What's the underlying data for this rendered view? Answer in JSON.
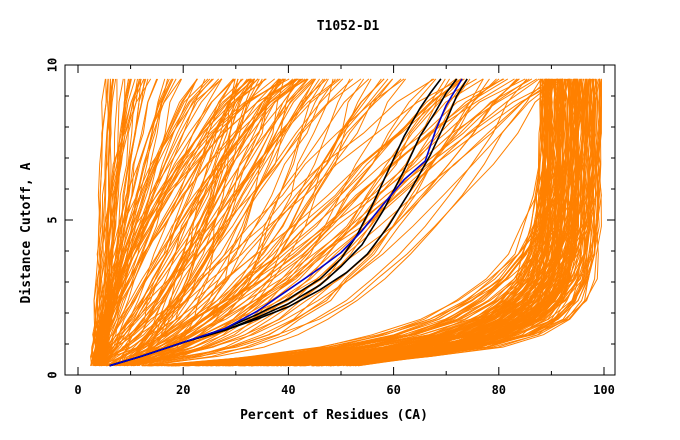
{
  "chart_data": {
    "type": "line",
    "title": "T1052-D1",
    "xlabel": "Percent of Residues (CA)",
    "ylabel": "Distance Cutoff, A",
    "xlim": [
      0,
      100
    ],
    "ylim": [
      0,
      10
    ],
    "x_ticks": [
      0,
      20,
      40,
      60,
      80,
      100
    ],
    "y_ticks": [
      0,
      5,
      10
    ],
    "x_tick_labels": [
      "0",
      "20",
      "40",
      "60",
      "80",
      "100"
    ],
    "y_tick_labels": [
      "0",
      "5",
      "10"
    ],
    "grid": false,
    "legend": "none",
    "colors": {
      "bundle": "#ff8000",
      "highlight_black": "#000000",
      "highlight_blue": "#0000cc"
    },
    "series": [
      {
        "color": "#000000",
        "x": [
          6,
          12,
          20,
          28,
          34,
          40,
          46,
          50,
          54,
          58,
          62,
          65,
          68,
          70,
          72
        ],
        "y": [
          0.3,
          0.6,
          1.05,
          1.45,
          1.85,
          2.3,
          2.9,
          3.5,
          4.2,
          5.3,
          6.6,
          7.7,
          8.5,
          9.1,
          9.55
        ]
      },
      {
        "color": "#000000",
        "x": [
          6,
          12,
          20,
          28,
          34,
          40,
          46,
          50,
          53,
          56,
          59,
          62,
          65,
          67,
          69
        ],
        "y": [
          0.3,
          0.6,
          1.05,
          1.5,
          1.95,
          2.45,
          3.1,
          3.75,
          4.5,
          5.5,
          6.6,
          7.7,
          8.6,
          9.1,
          9.55
        ]
      },
      {
        "color": "#000000",
        "x": [
          6,
          12,
          20,
          28,
          34,
          40,
          46,
          51,
          55,
          59,
          63,
          67,
          70,
          72,
          74
        ],
        "y": [
          0.3,
          0.6,
          1.05,
          1.45,
          1.8,
          2.2,
          2.75,
          3.3,
          3.9,
          4.8,
          5.9,
          7.1,
          8.2,
          9.0,
          9.55
        ]
      },
      {
        "color": "#0000cc",
        "x": [
          6,
          12,
          20,
          28,
          34,
          40,
          46,
          50,
          54,
          58,
          62,
          66,
          68,
          70,
          73
        ],
        "y": [
          0.3,
          0.6,
          1.05,
          1.5,
          2.05,
          2.75,
          3.45,
          3.95,
          4.65,
          5.5,
          6.3,
          6.9,
          7.9,
          8.7,
          9.55
        ]
      }
    ]
  }
}
